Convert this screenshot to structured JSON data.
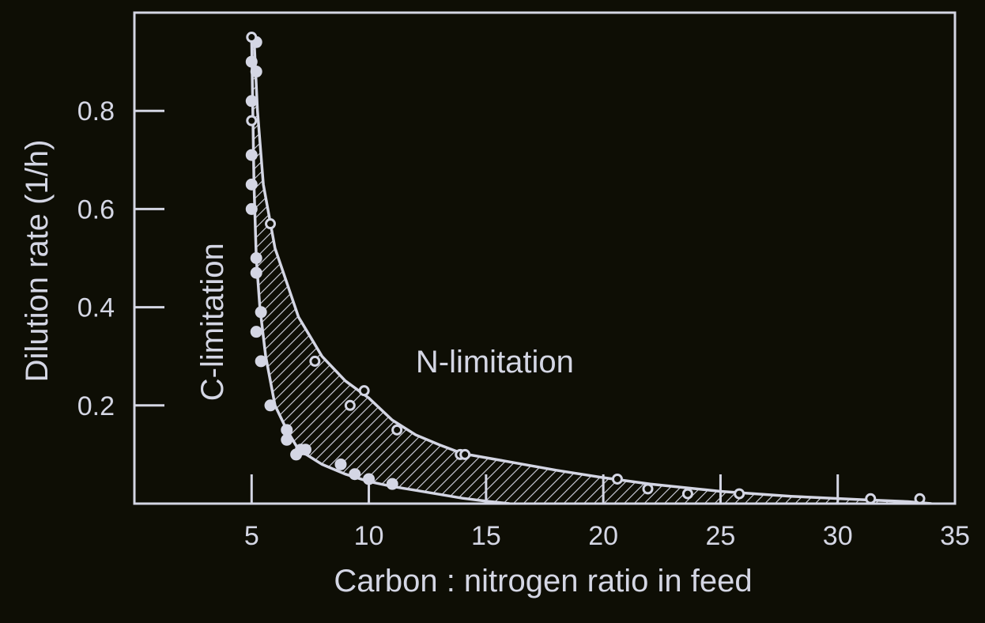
{
  "colors": {
    "background": "#0e0e05",
    "foreground": "#d4d6e4"
  },
  "chart_data": {
    "type": "scatter",
    "xlabel": "Carbon : nitrogen ratio in feed",
    "ylabel": "Dilution rate (1/h)",
    "xlim": [
      0,
      35
    ],
    "ylim": [
      0,
      1.0
    ],
    "xticks": [
      5,
      10,
      15,
      20,
      25,
      30,
      35
    ],
    "yticks": [
      0.2,
      0.4,
      0.6,
      0.8
    ],
    "ytick_labels": [
      "0.2",
      "0.4",
      "0.6",
      "0.8"
    ],
    "grid": false,
    "annotations": [
      {
        "text": "N-limitation",
        "x": 12,
        "y": 0.29
      },
      {
        "text": "C-limitation",
        "x": 3.3,
        "y": 0.37,
        "rotation": -90
      }
    ],
    "curves": [
      {
        "role": "lower-boundary",
        "points": [
          [
            5.0,
            0.95
          ],
          [
            5.05,
            0.8
          ],
          [
            5.1,
            0.65
          ],
          [
            5.2,
            0.5
          ],
          [
            5.35,
            0.4
          ],
          [
            5.6,
            0.3
          ],
          [
            6.0,
            0.2
          ],
          [
            6.5,
            0.15
          ],
          [
            7.0,
            0.11
          ],
          [
            8.0,
            0.08
          ],
          [
            9.0,
            0.06
          ],
          [
            10.0,
            0.045
          ],
          [
            11.0,
            0.035
          ],
          [
            12.0,
            0.027
          ],
          [
            13.0,
            0.019
          ],
          [
            14.0,
            0.011
          ],
          [
            15.0,
            0.005
          ],
          [
            16.0,
            0.0
          ]
        ]
      },
      {
        "role": "upper-boundary",
        "points": [
          [
            5.1,
            0.95
          ],
          [
            5.25,
            0.8
          ],
          [
            5.5,
            0.65
          ],
          [
            6.0,
            0.52
          ],
          [
            6.5,
            0.45
          ],
          [
            7.0,
            0.38
          ],
          [
            8.0,
            0.3
          ],
          [
            9.0,
            0.25
          ],
          [
            10.0,
            0.215
          ],
          [
            11.0,
            0.17
          ],
          [
            12.0,
            0.14
          ],
          [
            13.0,
            0.12
          ],
          [
            14.0,
            0.102
          ],
          [
            16.0,
            0.085
          ],
          [
            18.0,
            0.068
          ],
          [
            20.0,
            0.053
          ],
          [
            22.0,
            0.04
          ],
          [
            25.0,
            0.025
          ],
          [
            28.0,
            0.015
          ],
          [
            31.0,
            0.008
          ],
          [
            33.0,
            0.004
          ],
          [
            34.0,
            0.0
          ]
        ]
      }
    ],
    "series": [
      {
        "marker": "filled-circle",
        "points": [
          [
            5.0,
            0.9
          ],
          [
            5.0,
            0.82
          ],
          [
            5.0,
            0.71
          ],
          [
            5.0,
            0.65
          ],
          [
            5.0,
            0.6
          ],
          [
            5.2,
            0.94
          ],
          [
            5.2,
            0.88
          ],
          [
            5.2,
            0.5
          ],
          [
            5.2,
            0.47
          ],
          [
            5.2,
            0.35
          ],
          [
            5.4,
            0.39
          ],
          [
            5.4,
            0.29
          ],
          [
            5.8,
            0.2
          ],
          [
            6.5,
            0.15
          ],
          [
            6.5,
            0.13
          ],
          [
            6.9,
            0.1
          ],
          [
            7.1,
            0.11
          ],
          [
            7.3,
            0.11
          ],
          [
            8.8,
            0.08
          ],
          [
            9.4,
            0.06
          ],
          [
            10.0,
            0.05
          ],
          [
            11.0,
            0.04
          ]
        ]
      },
      {
        "marker": "open-circle",
        "points": [
          [
            5.0,
            0.95
          ],
          [
            5.0,
            0.78
          ],
          [
            5.8,
            0.57
          ],
          [
            7.7,
            0.29
          ],
          [
            9.2,
            0.2
          ],
          [
            9.8,
            0.23
          ],
          [
            11.2,
            0.15
          ],
          [
            13.9,
            0.1
          ],
          [
            14.1,
            0.1
          ],
          [
            20.6,
            0.05
          ],
          [
            21.9,
            0.03
          ],
          [
            23.6,
            0.02
          ],
          [
            25.8,
            0.02
          ],
          [
            31.4,
            0.01
          ],
          [
            33.5,
            0.01
          ]
        ]
      }
    ]
  }
}
